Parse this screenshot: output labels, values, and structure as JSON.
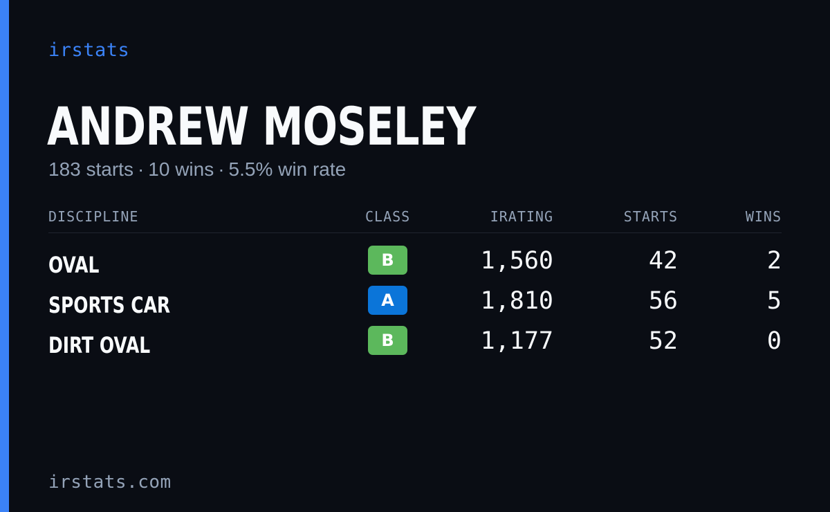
{
  "brand": "irstats",
  "driver": {
    "name": "ANDREW MOSELEY",
    "summary": {
      "starts": "183 starts",
      "wins": "10 wins",
      "win_rate": "5.5% win rate",
      "separator": "·"
    }
  },
  "table": {
    "headers": {
      "discipline": "DISCIPLINE",
      "class": "CLASS",
      "irating": "IRATING",
      "starts": "STARTS",
      "wins": "WINS"
    },
    "rows": [
      {
        "discipline": "OVAL",
        "class": "B",
        "class_color": "#5cb85c",
        "irating": "1,560",
        "starts": "42",
        "wins": "2"
      },
      {
        "discipline": "SPORTS CAR",
        "class": "A",
        "class_color": "#0b75d9",
        "irating": "1,810",
        "starts": "56",
        "wins": "5"
      },
      {
        "discipline": "DIRT OVAL",
        "class": "B",
        "class_color": "#5cb85c",
        "irating": "1,177",
        "starts": "52",
        "wins": "0"
      }
    ]
  },
  "footer": "irstats.com",
  "colors": {
    "background": "#0a0d14",
    "accent": "#3b82f6",
    "text_primary": "#f8fafc",
    "text_muted": "#94a3b8"
  }
}
